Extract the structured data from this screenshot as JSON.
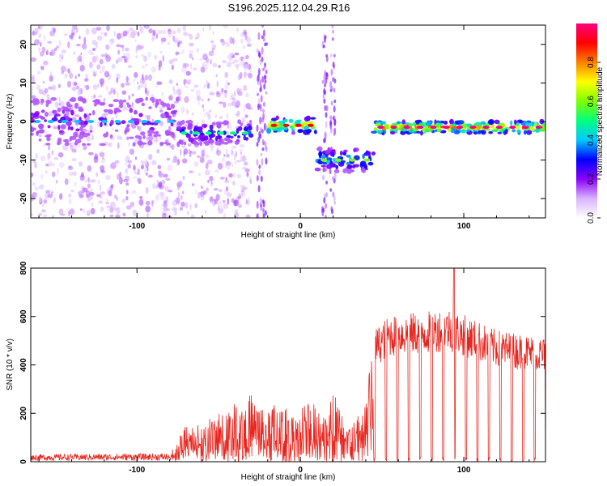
{
  "title": "S196.2025.112.04.29.R16",
  "chart_data": [
    {
      "type": "heatmap",
      "xlabel": "Height of straight line (km)",
      "ylabel": "Frequency (Hz)",
      "xlim": [
        -165,
        150
      ],
      "ylim": [
        -25,
        25
      ],
      "x_ticks": [
        -100,
        0,
        100
      ],
      "y_ticks": [
        -20,
        -10,
        0,
        10,
        20
      ],
      "colorbar": {
        "label": "Normalized spectral amplitude",
        "ticks": [
          0.0,
          0.2,
          0.4,
          0.6,
          0.8
        ],
        "range": [
          0,
          1
        ],
        "colors": [
          "#ffffff",
          "#d9b3ff",
          "#8a00ff",
          "#0000ff",
          "#00c8ff",
          "#00ff80",
          "#80ff00",
          "#ffff00",
          "#ff8000",
          "#ff0000",
          "#ff0080"
        ]
      },
      "ridge_segments": [
        {
          "x": [
            -165,
            -75
          ],
          "freq": 0,
          "spread": 6,
          "intensity": 0.25
        },
        {
          "x": [
            -75,
            -30
          ],
          "freq": -3,
          "spread": 3,
          "intensity": 0.35
        },
        {
          "x": [
            -20,
            10
          ],
          "freq": -1,
          "spread": 2,
          "intensity": 0.75
        },
        {
          "x": [
            10,
            45
          ],
          "freq": -10,
          "spread": 3,
          "intensity": 0.45
        },
        {
          "x": [
            45,
            150
          ],
          "freq": -1.5,
          "spread": 1.5,
          "intensity": 0.85
        }
      ]
    },
    {
      "type": "line",
      "xlabel": "Height of straight line (km)",
      "ylabel": "SNR (10 * v/v)",
      "xlim": [
        -165,
        150
      ],
      "ylim": [
        0,
        800
      ],
      "x_ticks": [
        -100,
        0,
        100
      ],
      "y_ticks": [
        0,
        200,
        400,
        600,
        800
      ],
      "series_color": "#e8261f",
      "envelope": [
        {
          "x": -165,
          "y": 25
        },
        {
          "x": -80,
          "y": 30
        },
        {
          "x": -70,
          "y": 150
        },
        {
          "x": -50,
          "y": 200
        },
        {
          "x": -30,
          "y": 280
        },
        {
          "x": -10,
          "y": 220
        },
        {
          "x": 10,
          "y": 250
        },
        {
          "x": 20,
          "y": 300
        },
        {
          "x": 30,
          "y": 150
        },
        {
          "x": 35,
          "y": 180
        },
        {
          "x": 45,
          "y": 520
        },
        {
          "x": 55,
          "y": 580
        },
        {
          "x": 75,
          "y": 590
        },
        {
          "x": 90,
          "y": 610
        },
        {
          "x": 100,
          "y": 580
        },
        {
          "x": 120,
          "y": 520
        },
        {
          "x": 150,
          "y": 490
        }
      ],
      "peak": {
        "x": 94,
        "y": 800
      },
      "dropout_region_start": 45,
      "dropout_spacing_km": 7
    }
  ]
}
